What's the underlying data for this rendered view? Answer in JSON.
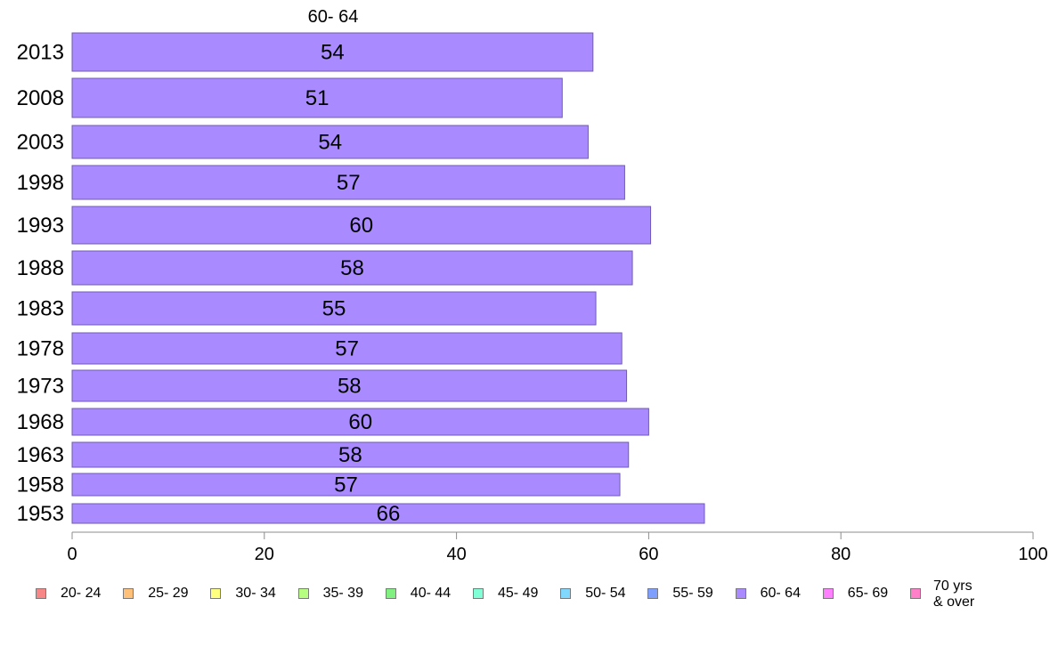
{
  "chart_data": {
    "type": "bar",
    "orientation": "horizontal",
    "title": "60- 64",
    "categories": [
      "2013",
      "2008",
      "2003",
      "1998",
      "1993",
      "1988",
      "1983",
      "1978",
      "1973",
      "1968",
      "1963",
      "1958",
      "1953"
    ],
    "series": [
      {
        "name": "60- 64",
        "color": "#a98bff",
        "values": [
          54.2,
          51.0,
          53.7,
          57.5,
          60.2,
          58.3,
          54.5,
          57.2,
          57.7,
          60.0,
          57.9,
          57.0,
          65.8
        ],
        "labels": [
          "54",
          "51",
          "54",
          "57",
          "60",
          "58",
          "55",
          "57",
          "58",
          "60",
          "58",
          "57",
          "66"
        ]
      }
    ],
    "xlim": [
      0,
      100
    ],
    "xticks": [
      0,
      20,
      40,
      60,
      80,
      100
    ],
    "xtick_labels": [
      "0",
      "20",
      "40",
      "60",
      "80",
      "100"
    ],
    "grid": false,
    "legend_position": "bottom",
    "legend": [
      {
        "label": "20- 24",
        "color": "#f78686"
      },
      {
        "label": "25- 29",
        "color": "#ffc07a"
      },
      {
        "label": "30- 34",
        "color": "#ffff80"
      },
      {
        "label": "35- 39",
        "color": "#b6ff80"
      },
      {
        "label": "40- 44",
        "color": "#80f080"
      },
      {
        "label": "45- 49",
        "color": "#80ffd6"
      },
      {
        "label": "50- 54",
        "color": "#80d8ff"
      },
      {
        "label": "55- 59",
        "color": "#7f9fff"
      },
      {
        "label": "60- 64",
        "color": "#a98bff"
      },
      {
        "label": "65- 69",
        "color": "#ff80ff"
      },
      {
        "label": "70 yrs\n& over",
        "color": "#ff80c8"
      }
    ]
  }
}
